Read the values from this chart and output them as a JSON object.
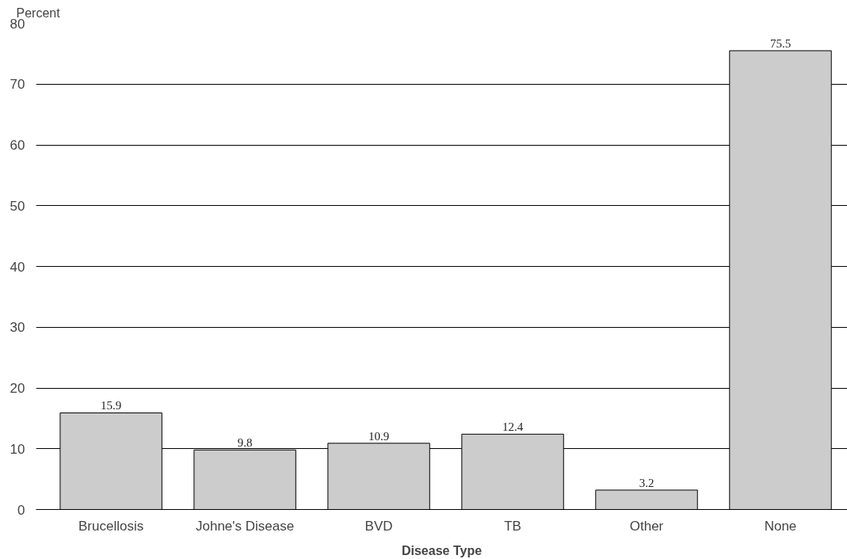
{
  "chart_data": {
    "type": "bar",
    "ylabel": "Percent",
    "xlabel": "Disease Type",
    "categories": [
      "Brucellosis",
      "Johne's Disease",
      "BVD",
      "TB",
      "Other",
      "None"
    ],
    "values": [
      15.9,
      9.8,
      10.9,
      12.4,
      3.2,
      75.5
    ],
    "color": "#cccccc",
    "ylim": [
      0,
      80
    ],
    "yticks": [
      0,
      10,
      20,
      30,
      40,
      50,
      60,
      70,
      80
    ],
    "grid": "y",
    "data_labels": true
  }
}
